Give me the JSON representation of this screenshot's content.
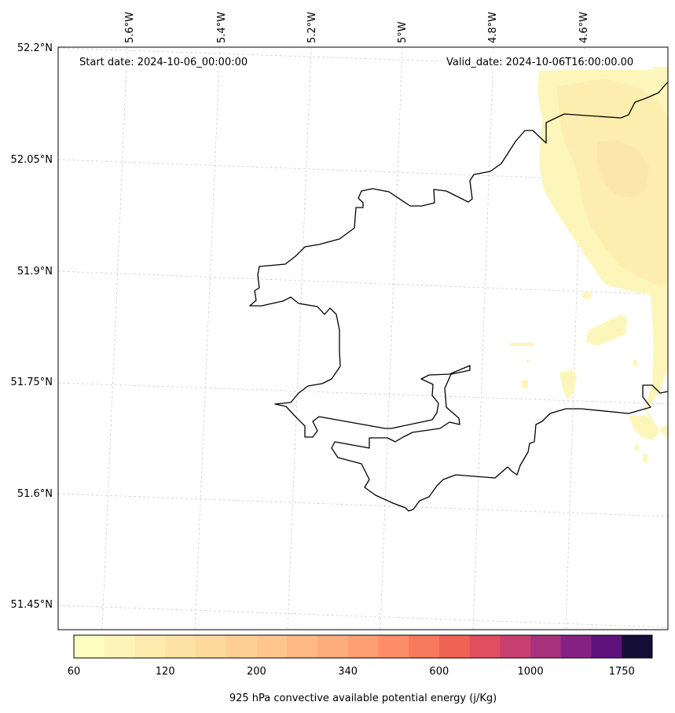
{
  "map": {
    "start_date_label": "Start date: 2024-10-06_00:00:00",
    "valid_date_label": "Valid_date: 2024-10-06T16:00:00.00",
    "lon_ticks": [
      "5.6°W",
      "5.4°W",
      "5.2°W",
      "5°W",
      "4.8°W",
      "4.6°W"
    ],
    "lat_ticks": [
      "52.2°N",
      "52.05°N",
      "51.9°N",
      "51.75°N",
      "51.6°N",
      "51.45°N"
    ],
    "gridlines": true,
    "coastline_color": "#000000"
  },
  "colorbar": {
    "label": "925 hPa convective available potential energy (j/Kg)",
    "tick_labels": [
      "60",
      "120",
      "200",
      "340",
      "600",
      "1000",
      "1750"
    ],
    "colors": [
      "#fcfdbf",
      "#fdf4b7",
      "#fdebae",
      "#fde2a6",
      "#fed99d",
      "#fecf95",
      "#fec68c",
      "#feb984",
      "#fdac7c",
      "#fd9e73",
      "#fc8d68",
      "#f87a5e",
      "#ef6355",
      "#e04f60",
      "#c8406f",
      "#a8327c",
      "#852283",
      "#5f127b",
      "#150e37"
    ]
  },
  "chart_data": {
    "type": "heatmap",
    "title": "",
    "variable": "925 hPa convective available potential energy (j/Kg)",
    "levels": [
      60,
      120,
      200,
      340,
      600,
      1000,
      1750
    ],
    "lon_range": [
      "5.6°W",
      "4.6°W"
    ],
    "lat_range": [
      "51.45°N",
      "52.2°N"
    ],
    "visible_field": "low CAPE (about 60-120 j/Kg) along the eastern edge, north-east of the coastline"
  }
}
